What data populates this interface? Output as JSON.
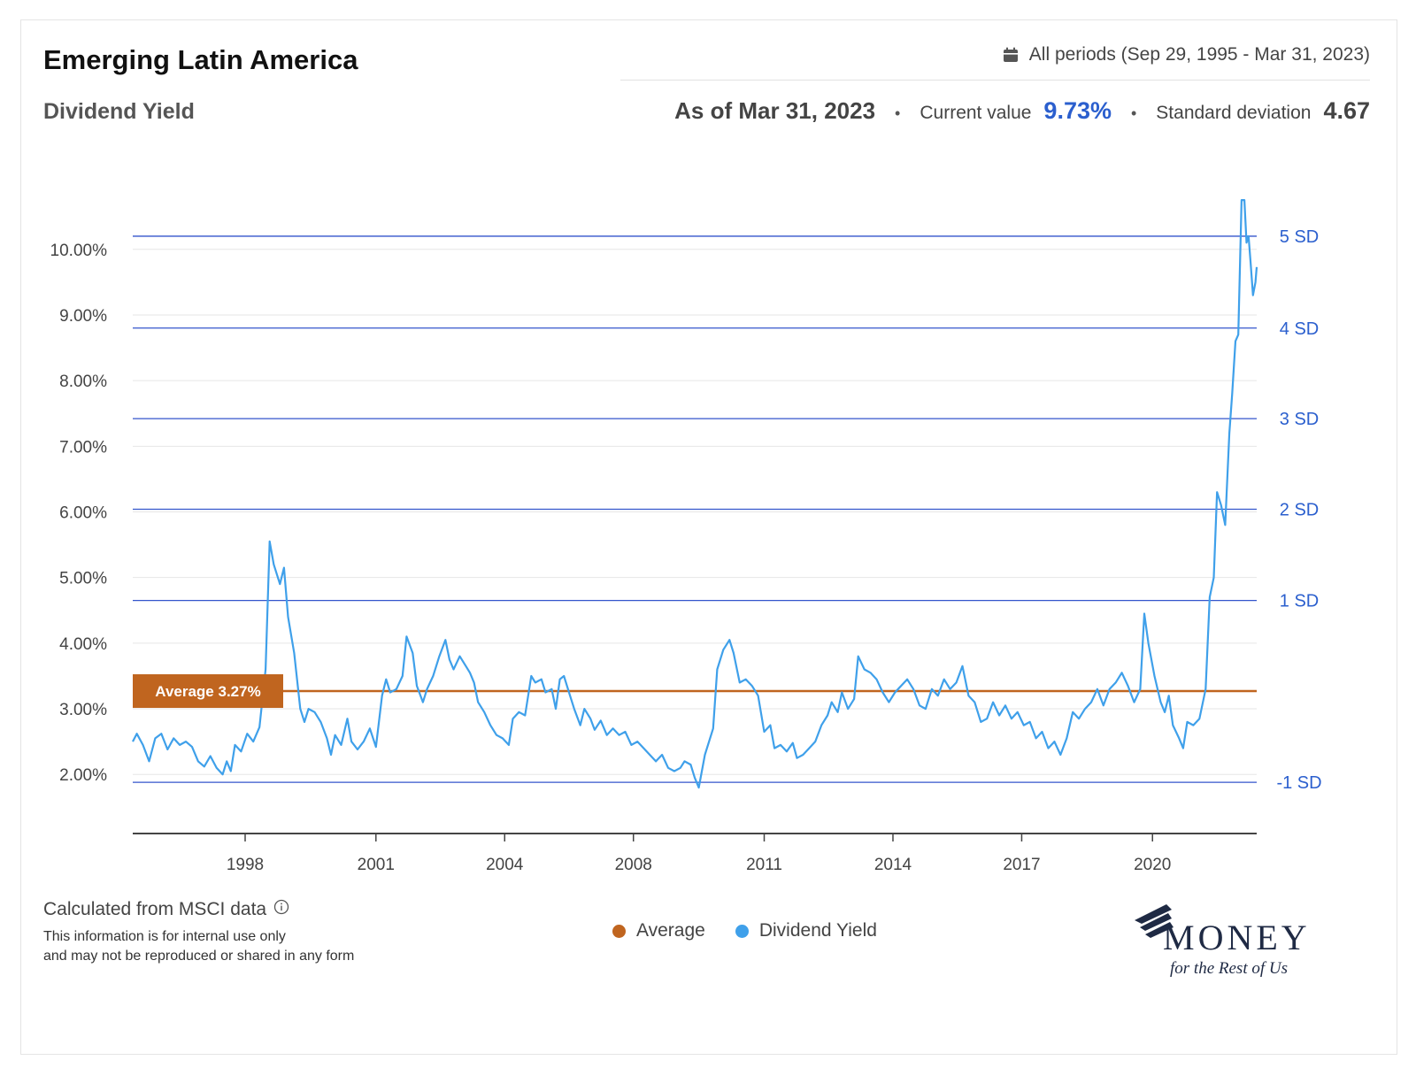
{
  "header": {
    "title": "Emerging Latin America",
    "subtitle": "Dividend Yield",
    "period": "All periods (Sep 29, 1995 - Mar 31, 2023)",
    "as_of": "As of Mar 31, 2023",
    "current_label": "Current value",
    "current_value": "9.73%",
    "sd_label": "Standard deviation",
    "sd_value": "4.67"
  },
  "colors": {
    "line": "#3fa0ea",
    "average": "#c0651f",
    "sd_line": "#3355cc",
    "sd_text": "#2b5fce",
    "grid": "#e6e6e6"
  },
  "chart_data": {
    "type": "line",
    "title": "Dividend Yield",
    "xlabel": "",
    "ylabel": "",
    "x_range": [
      1995.75,
      2023.25
    ],
    "ylim": [
      1.1,
      10.9
    ],
    "y_ticks": [
      2,
      3,
      4,
      5,
      6,
      7,
      8,
      9,
      10
    ],
    "y_tick_labels": [
      "2.00%",
      "3.00%",
      "4.00%",
      "5.00%",
      "6.00%",
      "7.00%",
      "8.00%",
      "9.00%",
      "10.00%"
    ],
    "x_ticks": [
      1998.5,
      2001.7,
      2004.85,
      2008.0,
      2011.2,
      2014.35,
      2017.5,
      2020.7
    ],
    "x_tick_labels": [
      "1998",
      "2001",
      "2004",
      "2008",
      "2011",
      "2014",
      "2017",
      "2020"
    ],
    "average": {
      "value": 3.27,
      "label": "Average 3.27%"
    },
    "sd_bands": [
      {
        "label": "5 SD",
        "value": 10.2
      },
      {
        "label": "4 SD",
        "value": 8.8
      },
      {
        "label": "3 SD",
        "value": 7.42
      },
      {
        "label": "2 SD",
        "value": 6.04
      },
      {
        "label": "1 SD",
        "value": 4.65
      },
      {
        "label": "-1 SD",
        "value": 1.88
      }
    ],
    "series": [
      {
        "name": "Dividend Yield",
        "points": [
          [
            1995.75,
            2.5
          ],
          [
            1995.85,
            2.62
          ],
          [
            1996.0,
            2.45
          ],
          [
            1996.15,
            2.2
          ],
          [
            1996.3,
            2.55
          ],
          [
            1996.45,
            2.62
          ],
          [
            1996.6,
            2.38
          ],
          [
            1996.75,
            2.55
          ],
          [
            1996.9,
            2.45
          ],
          [
            1997.05,
            2.5
          ],
          [
            1997.2,
            2.42
          ],
          [
            1997.35,
            2.2
          ],
          [
            1997.5,
            2.12
          ],
          [
            1997.65,
            2.28
          ],
          [
            1997.8,
            2.1
          ],
          [
            1997.95,
            2.0
          ],
          [
            1998.05,
            2.2
          ],
          [
            1998.15,
            2.05
          ],
          [
            1998.25,
            2.45
          ],
          [
            1998.4,
            2.35
          ],
          [
            1998.55,
            2.62
          ],
          [
            1998.7,
            2.5
          ],
          [
            1998.85,
            2.72
          ],
          [
            1999.0,
            3.6
          ],
          [
            1999.1,
            5.55
          ],
          [
            1999.2,
            5.2
          ],
          [
            1999.35,
            4.9
          ],
          [
            1999.45,
            5.15
          ],
          [
            1999.55,
            4.4
          ],
          [
            1999.7,
            3.85
          ],
          [
            1999.85,
            3.0
          ],
          [
            1999.95,
            2.8
          ],
          [
            2000.05,
            3.0
          ],
          [
            2000.2,
            2.95
          ],
          [
            2000.35,
            2.8
          ],
          [
            2000.5,
            2.55
          ],
          [
            2000.6,
            2.3
          ],
          [
            2000.7,
            2.6
          ],
          [
            2000.85,
            2.45
          ],
          [
            2001.0,
            2.85
          ],
          [
            2001.1,
            2.5
          ],
          [
            2001.25,
            2.38
          ],
          [
            2001.4,
            2.5
          ],
          [
            2001.55,
            2.7
          ],
          [
            2001.7,
            2.42
          ],
          [
            2001.85,
            3.2
          ],
          [
            2001.95,
            3.45
          ],
          [
            2002.05,
            3.25
          ],
          [
            2002.2,
            3.3
          ],
          [
            2002.35,
            3.5
          ],
          [
            2002.45,
            4.1
          ],
          [
            2002.6,
            3.85
          ],
          [
            2002.7,
            3.35
          ],
          [
            2002.85,
            3.1
          ],
          [
            2002.95,
            3.3
          ],
          [
            2003.1,
            3.5
          ],
          [
            2003.25,
            3.8
          ],
          [
            2003.4,
            4.05
          ],
          [
            2003.5,
            3.75
          ],
          [
            2003.6,
            3.6
          ],
          [
            2003.75,
            3.8
          ],
          [
            2003.9,
            3.65
          ],
          [
            2004.0,
            3.55
          ],
          [
            2004.1,
            3.4
          ],
          [
            2004.2,
            3.1
          ],
          [
            2004.35,
            2.95
          ],
          [
            2004.5,
            2.75
          ],
          [
            2004.65,
            2.6
          ],
          [
            2004.8,
            2.55
          ],
          [
            2004.95,
            2.45
          ],
          [
            2005.05,
            2.85
          ],
          [
            2005.2,
            2.95
          ],
          [
            2005.35,
            2.9
          ],
          [
            2005.5,
            3.5
          ],
          [
            2005.6,
            3.4
          ],
          [
            2005.75,
            3.45
          ],
          [
            2005.85,
            3.25
          ],
          [
            2006.0,
            3.3
          ],
          [
            2006.1,
            3.0
          ],
          [
            2006.2,
            3.45
          ],
          [
            2006.3,
            3.5
          ],
          [
            2006.45,
            3.2
          ],
          [
            2006.55,
            3.0
          ],
          [
            2006.7,
            2.75
          ],
          [
            2006.8,
            3.0
          ],
          [
            2006.95,
            2.85
          ],
          [
            2007.05,
            2.68
          ],
          [
            2007.2,
            2.82
          ],
          [
            2007.35,
            2.6
          ],
          [
            2007.5,
            2.7
          ],
          [
            2007.65,
            2.6
          ],
          [
            2007.8,
            2.65
          ],
          [
            2007.95,
            2.45
          ],
          [
            2008.1,
            2.5
          ],
          [
            2008.25,
            2.4
          ],
          [
            2008.4,
            2.3
          ],
          [
            2008.55,
            2.2
          ],
          [
            2008.7,
            2.3
          ],
          [
            2008.85,
            2.1
          ],
          [
            2009.0,
            2.05
          ],
          [
            2009.15,
            2.1
          ],
          [
            2009.25,
            2.2
          ],
          [
            2009.4,
            2.15
          ],
          [
            2009.5,
            1.95
          ],
          [
            2009.6,
            1.8
          ],
          [
            2009.75,
            2.3
          ],
          [
            2009.95,
            2.7
          ],
          [
            2010.05,
            3.6
          ],
          [
            2010.2,
            3.9
          ],
          [
            2010.35,
            4.05
          ],
          [
            2010.45,
            3.85
          ],
          [
            2010.6,
            3.4
          ],
          [
            2010.75,
            3.45
          ],
          [
            2010.9,
            3.35
          ],
          [
            2011.05,
            3.2
          ],
          [
            2011.2,
            2.65
          ],
          [
            2011.35,
            2.75
          ],
          [
            2011.45,
            2.4
          ],
          [
            2011.6,
            2.45
          ],
          [
            2011.75,
            2.35
          ],
          [
            2011.9,
            2.48
          ],
          [
            2012.0,
            2.25
          ],
          [
            2012.15,
            2.3
          ],
          [
            2012.3,
            2.4
          ],
          [
            2012.45,
            2.5
          ],
          [
            2012.6,
            2.75
          ],
          [
            2012.75,
            2.9
          ],
          [
            2012.85,
            3.1
          ],
          [
            2013.0,
            2.95
          ],
          [
            2013.1,
            3.25
          ],
          [
            2013.25,
            3.0
          ],
          [
            2013.4,
            3.15
          ],
          [
            2013.5,
            3.8
          ],
          [
            2013.65,
            3.6
          ],
          [
            2013.8,
            3.55
          ],
          [
            2013.95,
            3.45
          ],
          [
            2014.1,
            3.25
          ],
          [
            2014.25,
            3.1
          ],
          [
            2014.4,
            3.25
          ],
          [
            2014.55,
            3.35
          ],
          [
            2014.7,
            3.45
          ],
          [
            2014.85,
            3.3
          ],
          [
            2015.0,
            3.05
          ],
          [
            2015.15,
            3.0
          ],
          [
            2015.3,
            3.3
          ],
          [
            2015.45,
            3.2
          ],
          [
            2015.6,
            3.45
          ],
          [
            2015.75,
            3.3
          ],
          [
            2015.9,
            3.4
          ],
          [
            2016.05,
            3.65
          ],
          [
            2016.2,
            3.2
          ],
          [
            2016.35,
            3.1
          ],
          [
            2016.5,
            2.8
          ],
          [
            2016.65,
            2.85
          ],
          [
            2016.8,
            3.1
          ],
          [
            2016.95,
            2.9
          ],
          [
            2017.1,
            3.05
          ],
          [
            2017.25,
            2.85
          ],
          [
            2017.4,
            2.95
          ],
          [
            2017.55,
            2.75
          ],
          [
            2017.7,
            2.8
          ],
          [
            2017.85,
            2.55
          ],
          [
            2018.0,
            2.65
          ],
          [
            2018.15,
            2.4
          ],
          [
            2018.3,
            2.5
          ],
          [
            2018.45,
            2.3
          ],
          [
            2018.6,
            2.55
          ],
          [
            2018.75,
            2.95
          ],
          [
            2018.9,
            2.85
          ],
          [
            2019.05,
            3.0
          ],
          [
            2019.2,
            3.1
          ],
          [
            2019.35,
            3.3
          ],
          [
            2019.5,
            3.05
          ],
          [
            2019.65,
            3.3
          ],
          [
            2019.8,
            3.4
          ],
          [
            2019.95,
            3.55
          ],
          [
            2020.1,
            3.35
          ],
          [
            2020.25,
            3.1
          ],
          [
            2020.4,
            3.3
          ],
          [
            2020.5,
            4.45
          ],
          [
            2020.6,
            4.0
          ],
          [
            2020.75,
            3.5
          ],
          [
            2020.9,
            3.1
          ],
          [
            2021.0,
            2.95
          ],
          [
            2021.1,
            3.2
          ],
          [
            2021.2,
            2.75
          ],
          [
            2021.35,
            2.55
          ],
          [
            2021.45,
            2.4
          ],
          [
            2021.55,
            2.8
          ],
          [
            2021.7,
            2.75
          ],
          [
            2021.85,
            2.85
          ],
          [
            2022.0,
            3.3
          ],
          [
            2022.1,
            4.7
          ],
          [
            2022.2,
            5.0
          ],
          [
            2022.28,
            6.3
          ],
          [
            2022.38,
            6.1
          ],
          [
            2022.48,
            5.8
          ],
          [
            2022.58,
            7.2
          ],
          [
            2022.65,
            7.8
          ],
          [
            2022.73,
            8.6
          ],
          [
            2022.8,
            8.7
          ],
          [
            2022.88,
            10.75
          ],
          [
            2022.95,
            10.75
          ],
          [
            2023.0,
            10.1
          ],
          [
            2023.05,
            10.2
          ],
          [
            2023.1,
            9.8
          ],
          [
            2023.16,
            9.3
          ],
          [
            2023.22,
            9.5
          ],
          [
            2023.25,
            9.73
          ]
        ]
      }
    ],
    "legend": [
      {
        "name": "Average",
        "color": "#c0651f"
      },
      {
        "name": "Dividend Yield",
        "color": "#3fa0ea"
      }
    ]
  },
  "footer": {
    "source": "Calculated from MSCI data",
    "disclaimer_1": "This information is for internal use only",
    "disclaimer_2": "and may not be reproduced or shared in any form",
    "legend_average": "Average",
    "legend_yield": "Dividend Yield"
  },
  "brand": {
    "name": "MONEY",
    "tagline": "for the Rest of Us"
  }
}
